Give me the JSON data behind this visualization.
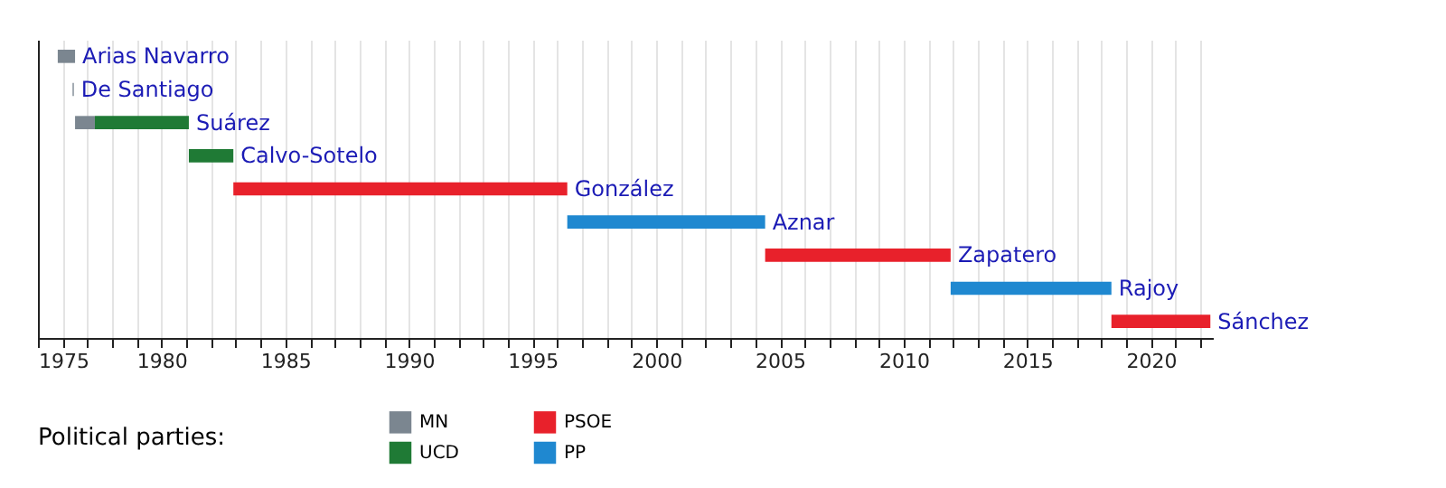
{
  "chart_data": {
    "type": "bar",
    "orientation": "horizontal",
    "categories": [
      "Arias Navarro",
      "De Santiago",
      "Suárez",
      "Calvo-Sotelo",
      "González",
      "Aznar",
      "Zapatero",
      "Rajoy",
      "Sánchez"
    ],
    "series": [
      {
        "name": "MN",
        "color": "#7b8690",
        "base": [
          1975.8,
          1976.4,
          1976.5,
          null,
          null,
          null,
          null,
          null,
          null
        ],
        "values": [
          0.7,
          0.05,
          0.8,
          null,
          null,
          null,
          null,
          null,
          null
        ]
      },
      {
        "name": "PSOE",
        "color": "#e8212b",
        "base": [
          null,
          null,
          null,
          null,
          1982.9,
          null,
          2004.4,
          null,
          2018.4
        ],
        "values": [
          null,
          null,
          null,
          null,
          13.5,
          null,
          7.5,
          null,
          4.0
        ]
      },
      {
        "name": "UCD",
        "color": "#1f7a35",
        "base": [
          null,
          null,
          1977.3,
          1981.1,
          null,
          null,
          null,
          null,
          null
        ],
        "values": [
          null,
          null,
          3.8,
          1.8,
          null,
          null,
          null,
          null,
          null
        ]
      },
      {
        "name": "PP",
        "color": "#1f88d0",
        "base": [
          null,
          null,
          null,
          null,
          null,
          1996.4,
          null,
          2011.9,
          null
        ],
        "values": [
          null,
          null,
          null,
          null,
          null,
          8.0,
          null,
          6.5,
          null
        ]
      }
    ],
    "xlim": [
      1975,
      2022.5
    ],
    "xticks": [
      1975,
      {
        "value": 1976,
        "label": null
      },
      {
        "value": 1977,
        "label": null
      },
      {
        "value": 1978,
        "label": null
      },
      {
        "value": 1979,
        "label": null
      },
      1980,
      {
        "value": 1981,
        "label": null
      },
      {
        "value": 1982,
        "label": null
      },
      {
        "value": 1983,
        "label": null
      },
      {
        "value": 1984,
        "label": null
      },
      1985,
      {
        "value": 1986,
        "label": null
      },
      {
        "value": 1987,
        "label": null
      },
      {
        "value": 1988,
        "label": null
      },
      {
        "value": 1989,
        "label": null
      },
      1990,
      {
        "value": 1991,
        "label": null
      },
      {
        "value": 1992,
        "label": null
      },
      {
        "value": 1993,
        "label": null
      },
      {
        "value": 1994,
        "label": null
      },
      1995,
      {
        "value": 1996,
        "label": null
      },
      {
        "value": 1997,
        "label": null
      },
      {
        "value": 1998,
        "label": null
      },
      {
        "value": 1999,
        "label": null
      },
      2000,
      {
        "value": 2001,
        "label": null
      },
      {
        "value": 2002,
        "label": null
      },
      {
        "value": 2003,
        "label": null
      },
      {
        "value": 2004,
        "label": null
      },
      2005,
      {
        "value": 2006,
        "label": null
      },
      {
        "value": 2007,
        "label": null
      },
      {
        "value": 2008,
        "label": null
      },
      {
        "value": 2009,
        "label": null
      },
      2010,
      {
        "value": 2011,
        "label": null
      },
      {
        "value": 2012,
        "label": null
      },
      {
        "value": 2013,
        "label": null
      },
      {
        "value": 2014,
        "label": null
      },
      2015,
      {
        "value": 2016,
        "label": null
      },
      {
        "value": 2017,
        "label": null
      },
      {
        "value": 2018,
        "label": null
      },
      {
        "value": 2019,
        "label": null
      },
      2020,
      {
        "value": 2021,
        "label": null
      },
      {
        "value": 2022,
        "label": null
      }
    ],
    "grid": "x",
    "tick_labels": "x",
    "legend": "bottom left",
    "legend_title": "Political parties:"
  }
}
